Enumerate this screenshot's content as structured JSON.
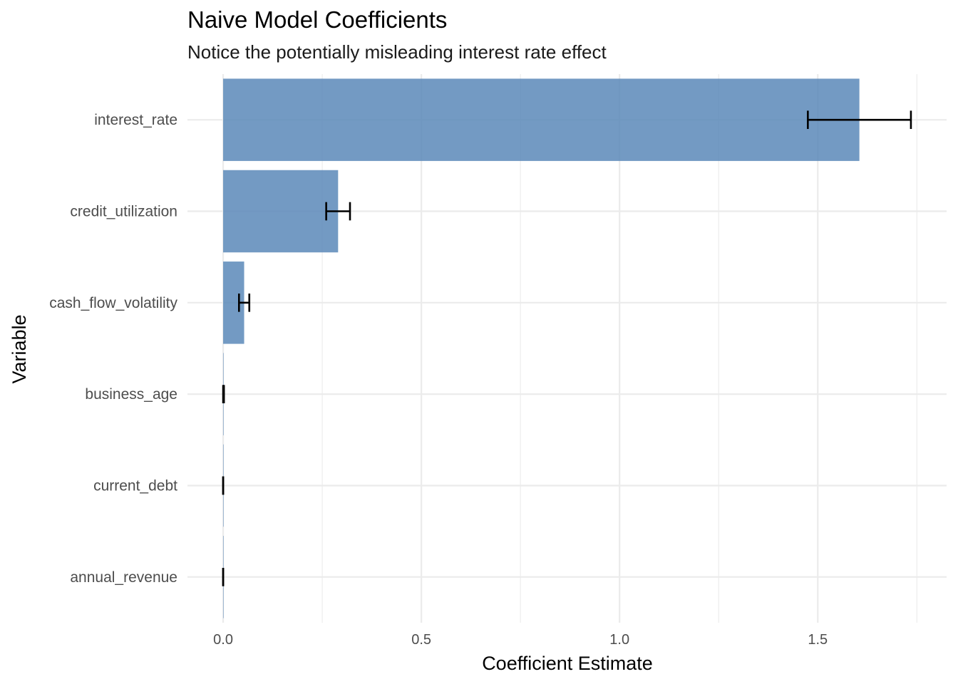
{
  "chart_data": {
    "type": "bar",
    "orientation": "horizontal",
    "title": "Naive Model Coefficients",
    "subtitle": "Notice the potentially misleading interest rate effect",
    "xlabel": "Coefficient Estimate",
    "ylabel": "Variable",
    "xlim": [
      -0.09,
      1.825
    ],
    "x_ticks": [
      0.0,
      0.5,
      1.0,
      1.5
    ],
    "x_tick_labels": [
      "0.0",
      "0.5",
      "1.0",
      "1.5"
    ],
    "x_minor_ticks": [
      0.25,
      0.75,
      1.25,
      1.75
    ],
    "grid": true,
    "bar_color": "#5b88b9",
    "error_color": "#000000",
    "categories": [
      "interest_rate",
      "credit_utilization",
      "cash_flow_volatility",
      "business_age",
      "current_debt",
      "annual_revenue"
    ],
    "values": [
      1.605,
      0.29,
      0.053,
      0.001,
      0.0,
      0.0
    ],
    "error_low": [
      1.475,
      0.26,
      0.04,
      0.0,
      0.0,
      0.0
    ],
    "error_high": [
      1.735,
      0.32,
      0.066,
      0.002,
      0.0,
      0.0
    ]
  }
}
